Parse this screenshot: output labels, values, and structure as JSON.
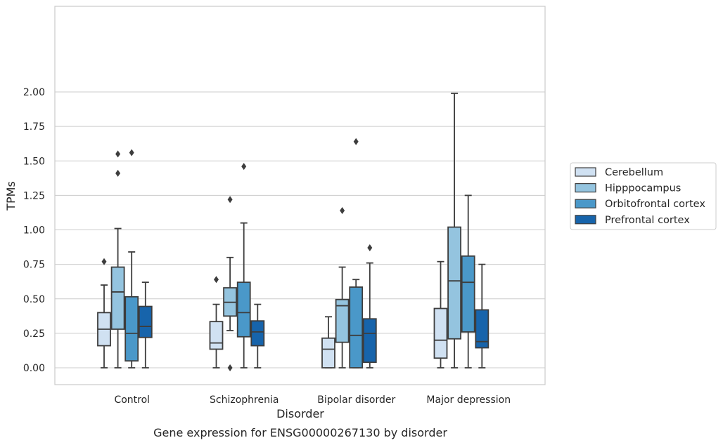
{
  "chart_data": {
    "type": "boxplot",
    "xlabel": "Disorder",
    "ylabel": "TPMs",
    "caption": "Gene expression for ENSG00000267130 by disorder",
    "ylim": [
      -0.1,
      2.1
    ],
    "yticks": [
      "0.00",
      "0.25",
      "0.50",
      "0.75",
      "1.00",
      "1.25",
      "1.50",
      "1.75",
      "2.00"
    ],
    "grid": true,
    "legend_position": "right",
    "categories": [
      "Control",
      "Schizophrenia",
      "Bipolar disorder",
      "Major depression"
    ],
    "series": [
      {
        "name": "Cerebellum",
        "color": "#d0e1f2",
        "boxes": [
          {
            "whislo": 0.0,
            "q1": 0.16,
            "med": 0.28,
            "q3": 0.4,
            "whishi": 0.6,
            "fliers": [
              0.77
            ]
          },
          {
            "whislo": 0.0,
            "q1": 0.135,
            "med": 0.18,
            "q3": 0.335,
            "whishi": 0.46,
            "fliers": [
              0.64
            ]
          },
          {
            "whislo": 0.0,
            "q1": 0.0,
            "med": 0.135,
            "q3": 0.215,
            "whishi": 0.37,
            "fliers": []
          },
          {
            "whislo": 0.0,
            "q1": 0.07,
            "med": 0.2,
            "q3": 0.43,
            "whishi": 0.77,
            "fliers": []
          }
        ]
      },
      {
        "name": "Hipppocampus",
        "color": "#94c4df",
        "boxes": [
          {
            "whislo": 0.0,
            "q1": 0.28,
            "med": 0.55,
            "q3": 0.73,
            "whishi": 1.01,
            "fliers": [
              1.41,
              1.55
            ]
          },
          {
            "whislo": 0.27,
            "q1": 0.375,
            "med": 0.475,
            "q3": 0.58,
            "whishi": 0.8,
            "fliers": [
              0.0,
              1.22
            ]
          },
          {
            "whislo": 0.0,
            "q1": 0.185,
            "med": 0.45,
            "q3": 0.495,
            "whishi": 0.73,
            "fliers": [
              1.14
            ]
          },
          {
            "whislo": 0.0,
            "q1": 0.21,
            "med": 0.63,
            "q3": 1.02,
            "whishi": 1.99,
            "fliers": []
          }
        ]
      },
      {
        "name": "Orbitofrontal cortex",
        "color": "#4a98c9",
        "boxes": [
          {
            "whislo": 0.0,
            "q1": 0.05,
            "med": 0.25,
            "q3": 0.515,
            "whishi": 0.84,
            "fliers": [
              1.56
            ]
          },
          {
            "whislo": 0.0,
            "q1": 0.225,
            "med": 0.4,
            "q3": 0.62,
            "whishi": 1.05,
            "fliers": [
              1.46
            ]
          },
          {
            "whislo": 0.0,
            "q1": 0.0,
            "med": 0.235,
            "q3": 0.585,
            "whishi": 0.64,
            "fliers": [
              1.64
            ]
          },
          {
            "whislo": 0.0,
            "q1": 0.26,
            "med": 0.62,
            "q3": 0.81,
            "whishi": 1.25,
            "fliers": []
          }
        ]
      },
      {
        "name": "Prefrontal cortex",
        "color": "#1764ab",
        "boxes": [
          {
            "whislo": 0.0,
            "q1": 0.22,
            "med": 0.3,
            "q3": 0.445,
            "whishi": 0.62,
            "fliers": []
          },
          {
            "whislo": 0.0,
            "q1": 0.16,
            "med": 0.26,
            "q3": 0.34,
            "whishi": 0.46,
            "fliers": []
          },
          {
            "whislo": 0.0,
            "q1": 0.04,
            "med": 0.25,
            "q3": 0.355,
            "whishi": 0.76,
            "fliers": [
              0.87
            ]
          },
          {
            "whislo": 0.0,
            "q1": 0.145,
            "med": 0.19,
            "q3": 0.42,
            "whishi": 0.75,
            "fliers": []
          }
        ]
      }
    ]
  }
}
